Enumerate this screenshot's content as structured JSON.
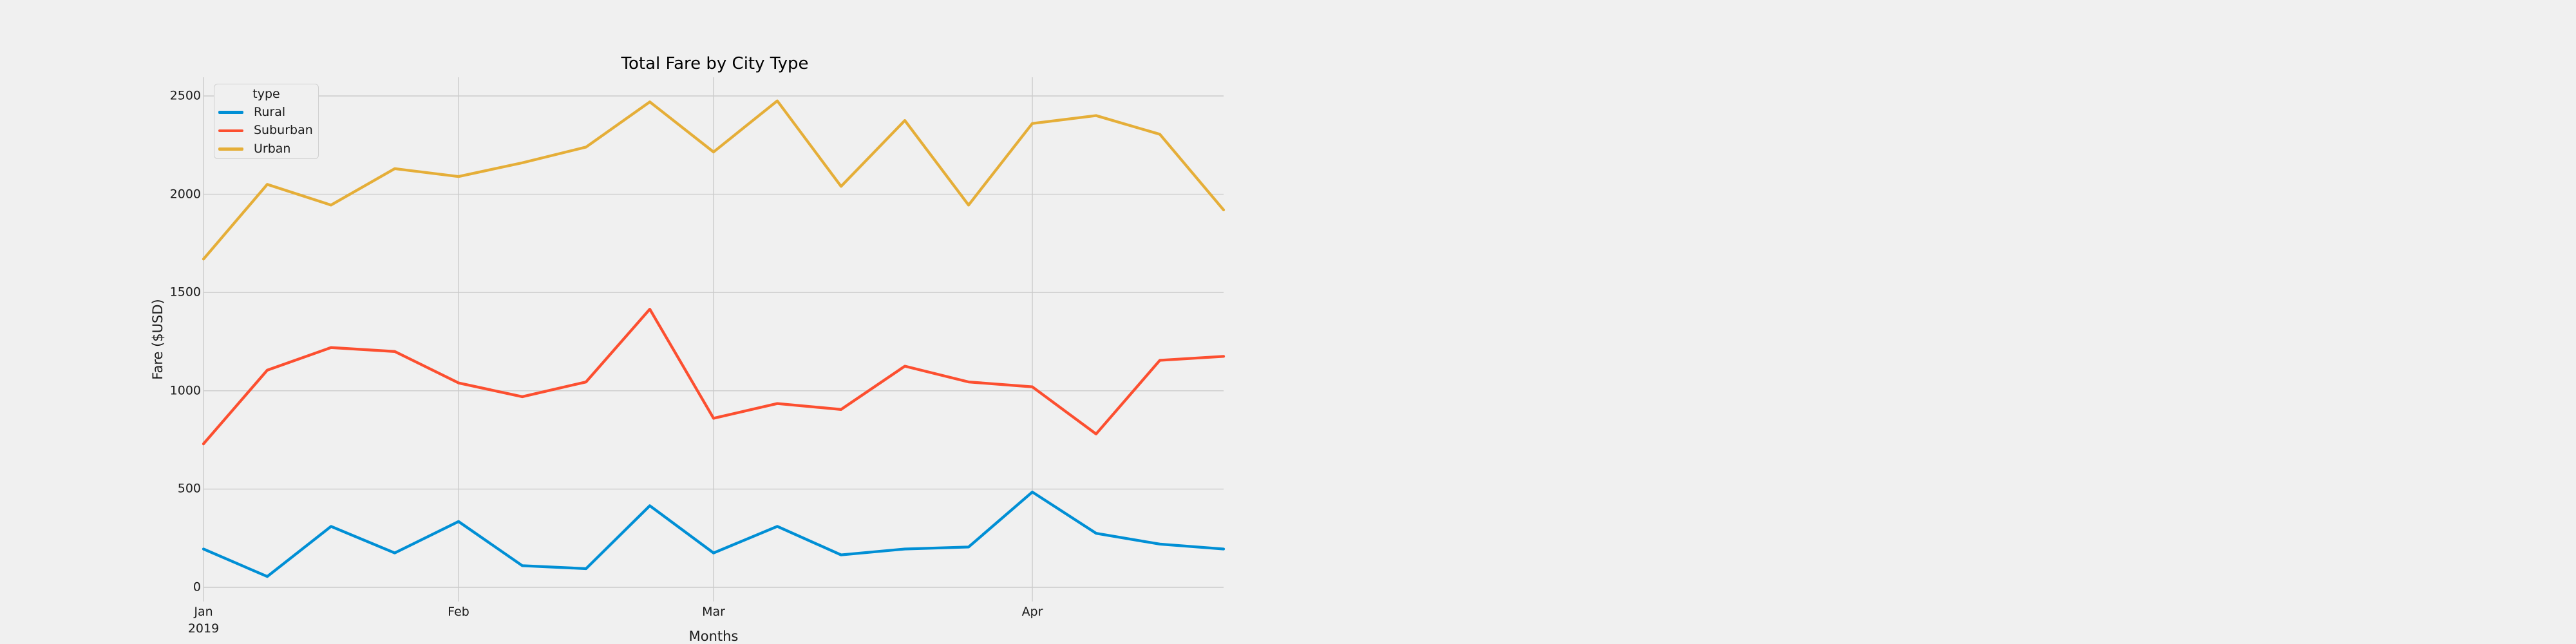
{
  "chart_data": {
    "type": "line",
    "title": "Total Fare by City Type",
    "xlabel": "Months",
    "ylabel": "Fare ($USD)",
    "x_axis": {
      "unit": "weekly",
      "n_points": 17,
      "tick_labels": [
        {
          "index": 0,
          "label": "Jan",
          "sublabel": "2019"
        },
        {
          "index": 4,
          "label": "Feb",
          "sublabel": ""
        },
        {
          "index": 8,
          "label": "Mar",
          "sublabel": ""
        },
        {
          "index": 13,
          "label": "Apr",
          "sublabel": ""
        }
      ]
    },
    "y_axis": {
      "ticks": [
        0,
        500,
        1000,
        1500,
        2000,
        2500
      ],
      "lim": [
        -55,
        2595
      ]
    },
    "grid": true,
    "legend": {
      "title": "type",
      "position": "upper-left"
    },
    "series": [
      {
        "name": "Rural",
        "color": "#008fd5",
        "values": [
          195,
          55,
          310,
          175,
          335,
          110,
          95,
          415,
          175,
          310,
          165,
          195,
          205,
          485,
          275,
          220,
          195
        ]
      },
      {
        "name": "Suburban",
        "color": "#fc4f30",
        "values": [
          730,
          1105,
          1220,
          1200,
          1040,
          970,
          1045,
          1415,
          860,
          935,
          905,
          1125,
          1045,
          1020,
          780,
          1155,
          1175
        ]
      },
      {
        "name": "Urban",
        "color": "#e5ae38",
        "values": [
          1670,
          2050,
          1945,
          2130,
          2090,
          2160,
          2240,
          2470,
          2215,
          2475,
          2040,
          2375,
          1945,
          2360,
          2400,
          2305,
          1920
        ]
      }
    ],
    "colors": {
      "background": "#f0f0f0",
      "grid": "#cbcbcb",
      "text": "#1a1a1a"
    }
  }
}
